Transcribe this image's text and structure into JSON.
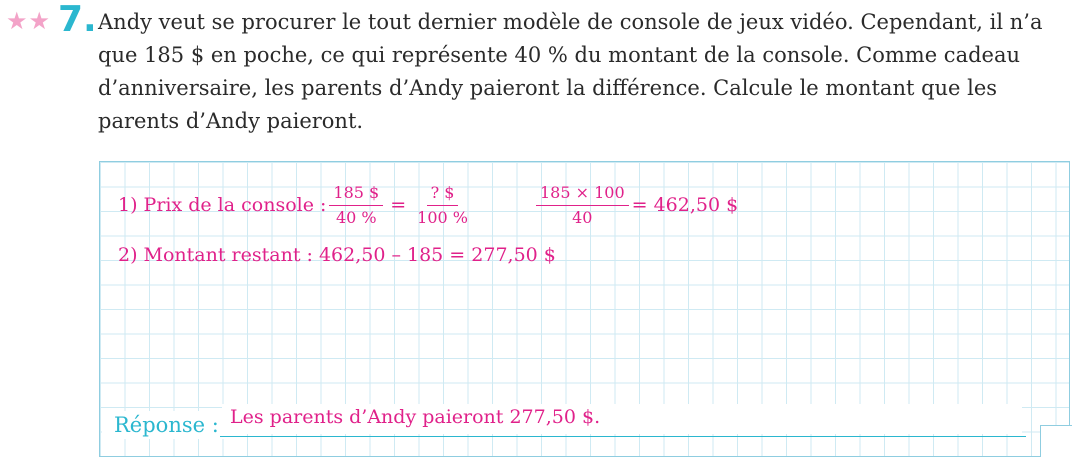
{
  "exercise": {
    "number": "7.",
    "difficulty_stars": 2,
    "question": "Andy veut se procurer le tout dernier modèle de console de jeux vidéo. Cependant, il n’a que 185 $ en poche, ce qui représente 40 % du montant de la console. Comme cadeau d’anniversaire, les parents d’Andy paieront la différence. Calcule le montant que les parents d’Andy paieront."
  },
  "solution": {
    "step1": {
      "label": "1)  Prix de la console :",
      "frac1_num": "185 $",
      "frac1_den": "40 %",
      "equals": "=",
      "frac2_num": "? $",
      "frac2_den": "100 %",
      "frac3_num": "185 × 100",
      "frac3_den": "40",
      "result": "= 462,50 $"
    },
    "step2": {
      "text": "2)  Montant restant : 462,50 – 185 = 277,50 $"
    },
    "answer_label": "Réponse :",
    "answer": "Les parents d’Andy paieront 277,50 $."
  },
  "colors": {
    "accent_blue": "#2bb7cf",
    "answer_pink": "#e0218a",
    "star_pink": "#f3a3c8",
    "grid": "#cfeaf3"
  }
}
